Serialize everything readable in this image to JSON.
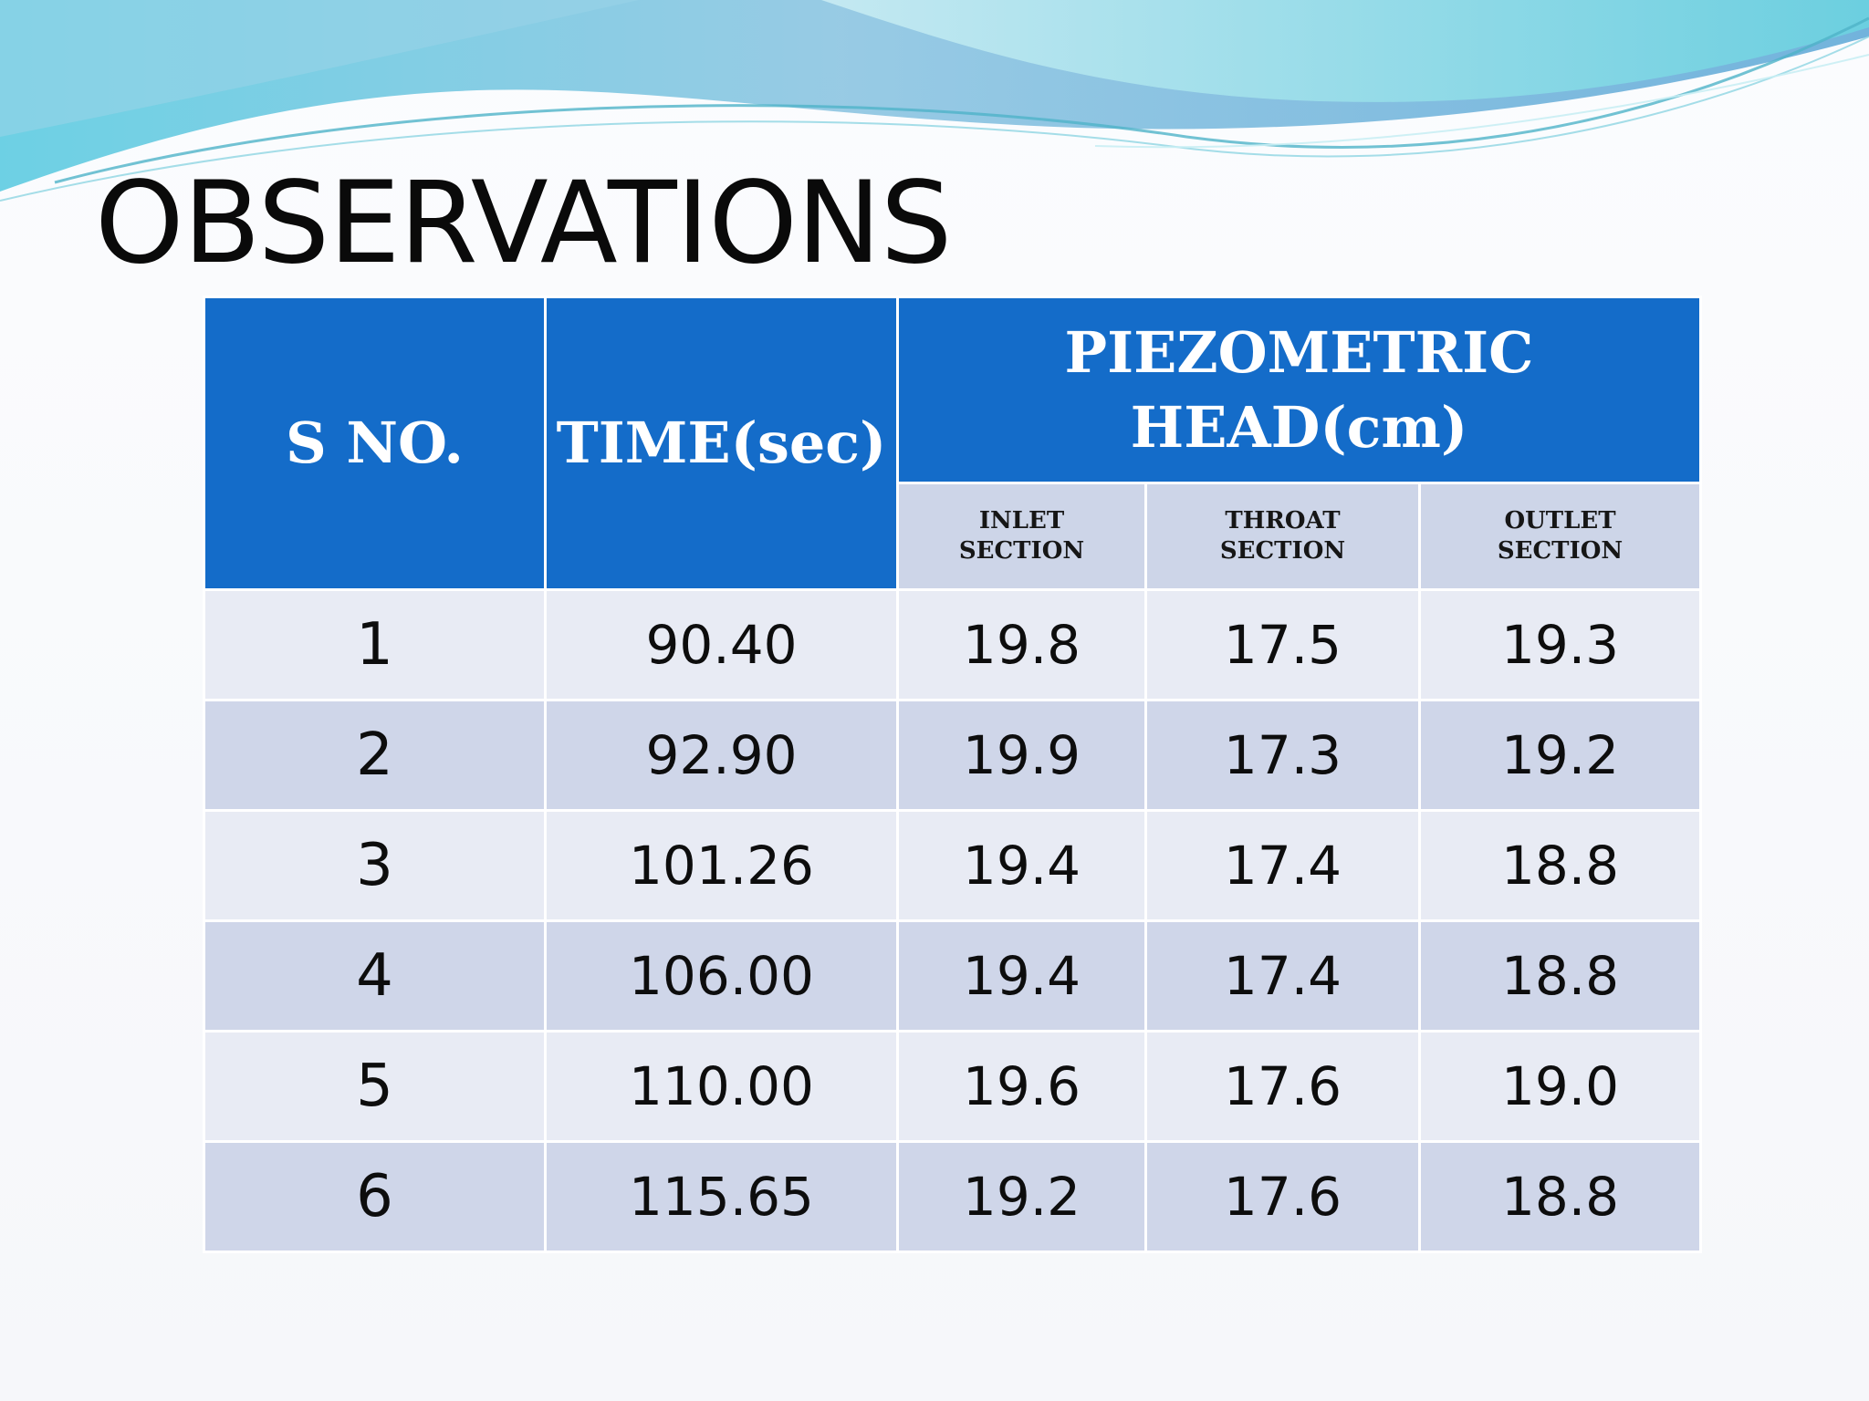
{
  "slide": {
    "title": "OBSERVATIONS"
  },
  "table": {
    "headers": {
      "sno": "S NO.",
      "time": "TIME(sec)",
      "piezometric": "PIEZOMETRIC HEAD(cm)",
      "inlet": "INLET SECTION",
      "throat": "THROAT SECTION",
      "outlet": "OUTLET SECTION"
    },
    "rows": [
      {
        "sno": "1",
        "time": "90.40",
        "inlet": "19.8",
        "throat": "17.5",
        "outlet": "19.3"
      },
      {
        "sno": "2",
        "time": "92.90",
        "inlet": "19.9",
        "throat": "17.3",
        "outlet": "19.2"
      },
      {
        "sno": "3",
        "time": "101.26",
        "inlet": "19.4",
        "throat": "17.4",
        "outlet": "18.8"
      },
      {
        "sno": "4",
        "time": "106.00",
        "inlet": "19.4",
        "throat": "17.4",
        "outlet": "18.8"
      },
      {
        "sno": "5",
        "time": "110.00",
        "inlet": "19.6",
        "throat": "17.6",
        "outlet": "19.0"
      },
      {
        "sno": "6",
        "time": "115.65",
        "inlet": "19.2",
        "throat": "17.6",
        "outlet": "18.8"
      }
    ]
  },
  "colors": {
    "header_blue": "#146cc9",
    "subheader": "#cdd5e8",
    "row_light": "#e8ebf4",
    "row_dark": "#cfd6e9",
    "wave_teal": "#5cc8dc",
    "wave_blue": "#6aa8d8"
  }
}
